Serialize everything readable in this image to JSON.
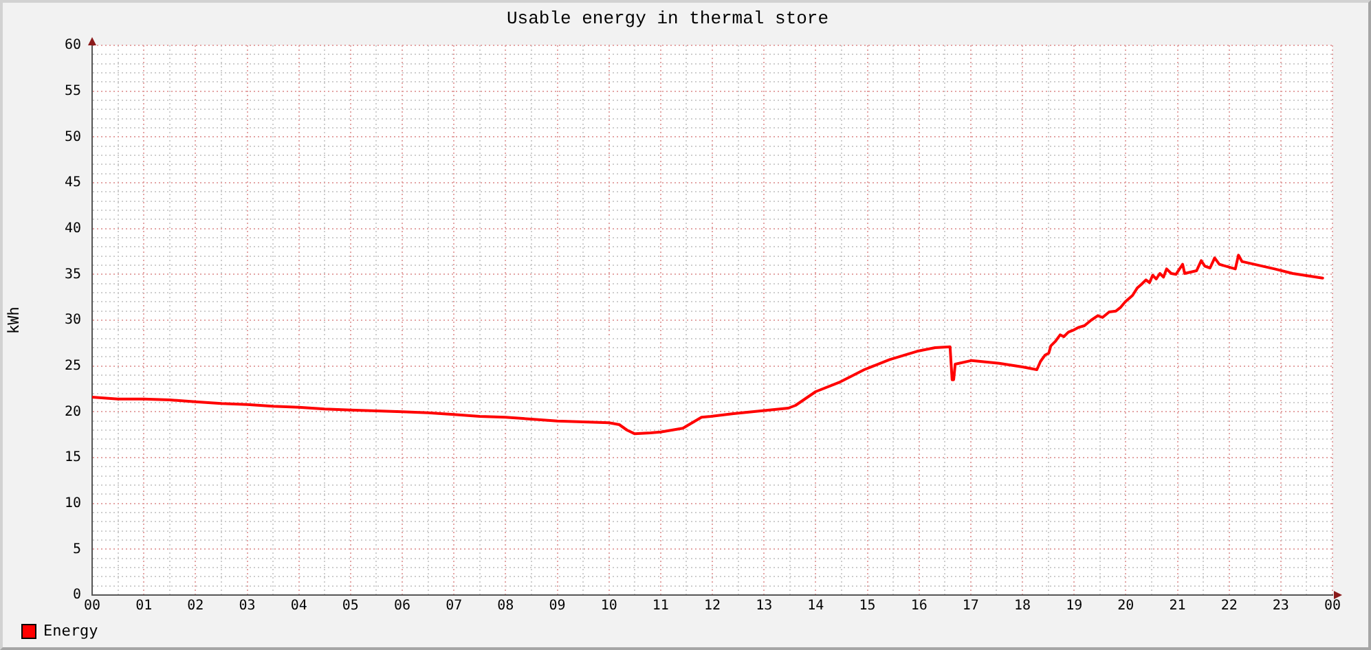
{
  "chart_data": {
    "type": "line",
    "title": "Usable energy in thermal store",
    "ylabel": "kWh",
    "x": [
      0,
      0.5,
      1,
      1.5,
      2,
      2.5,
      3,
      3.5,
      4,
      4.5,
      5,
      5.5,
      6,
      6.5,
      7,
      7.5,
      8,
      8.5,
      9,
      9.5,
      10,
      10.2,
      10.35,
      10.5,
      10.8,
      11,
      11.43,
      11.79,
      11.97,
      12.41,
      12.94,
      13.47,
      13.61,
      14,
      14.45,
      14.94,
      15.43,
      15.96,
      16.31,
      16.6,
      16.64,
      16.67,
      16.7,
      17.02,
      17.55,
      18,
      18.28,
      18.35,
      18.44,
      18.51,
      18.55,
      18.64,
      18.73,
      18.8,
      18.89,
      18.98,
      19.08,
      19.2,
      19.33,
      19.46,
      19.55,
      19.68,
      19.81,
      19.9,
      19.99,
      20.13,
      20.22,
      20.3,
      20.39,
      20.46,
      20.52,
      20.59,
      20.66,
      20.73,
      20.79,
      20.88,
      20.97,
      21.1,
      21.14,
      21.37,
      21.46,
      21.53,
      21.63,
      21.72,
      21.81,
      22.12,
      22.18,
      22.25,
      22.88,
      23.23,
      23.81
    ],
    "series": [
      {
        "name": "Energy",
        "color": "#ff0000",
        "values": [
          21.6,
          21.4,
          21.4,
          21.3,
          21.1,
          20.9,
          20.8,
          20.6,
          20.5,
          20.3,
          20.2,
          20.1,
          20.0,
          19.9,
          19.7,
          19.5,
          19.4,
          19.2,
          19.0,
          18.9,
          18.8,
          18.6,
          18.0,
          17.6,
          17.7,
          17.8,
          18.2,
          19.4,
          19.5,
          19.8,
          20.1,
          20.4,
          20.7,
          22.2,
          23.2,
          24.6,
          25.7,
          26.6,
          27.0,
          27.1,
          23.5,
          23.5,
          25.2,
          25.6,
          25.3,
          24.9,
          24.6,
          25.5,
          26.2,
          26.4,
          27.2,
          27.7,
          28.4,
          28.2,
          28.7,
          28.9,
          29.2,
          29.4,
          30.0,
          30.5,
          30.3,
          30.9,
          31.0,
          31.4,
          32.0,
          32.7,
          33.5,
          33.9,
          34.4,
          34.1,
          34.9,
          34.5,
          35.1,
          34.7,
          35.6,
          35.1,
          35.0,
          36.1,
          35.1,
          35.4,
          36.5,
          35.9,
          35.7,
          36.8,
          36.1,
          35.6,
          37.1,
          36.4,
          35.6,
          35.1,
          34.6
        ]
      }
    ],
    "xlim": [
      0,
      24
    ],
    "xticks": [
      {
        "value": 0,
        "label": "00"
      },
      {
        "value": 0.5,
        "label": null
      },
      {
        "value": 1,
        "label": "01"
      },
      {
        "value": 1.5,
        "label": null
      },
      {
        "value": 2,
        "label": "02"
      },
      {
        "value": 2.5,
        "label": null
      },
      {
        "value": 3,
        "label": "03"
      },
      {
        "value": 3.5,
        "label": null
      },
      {
        "value": 4,
        "label": "04"
      },
      {
        "value": 4.5,
        "label": null
      },
      {
        "value": 5,
        "label": "05"
      },
      {
        "value": 5.5,
        "label": null
      },
      {
        "value": 6,
        "label": "06"
      },
      {
        "value": 6.5,
        "label": null
      },
      {
        "value": 7,
        "label": "07"
      },
      {
        "value": 7.5,
        "label": null
      },
      {
        "value": 8,
        "label": "08"
      },
      {
        "value": 8.5,
        "label": null
      },
      {
        "value": 9,
        "label": "09"
      },
      {
        "value": 9.5,
        "label": null
      },
      {
        "value": 10,
        "label": "10"
      },
      {
        "value": 10.5,
        "label": null
      },
      {
        "value": 11,
        "label": "11"
      },
      {
        "value": 11.5,
        "label": null
      },
      {
        "value": 12,
        "label": "12"
      },
      {
        "value": 12.5,
        "label": null
      },
      {
        "value": 13,
        "label": "13"
      },
      {
        "value": 13.5,
        "label": null
      },
      {
        "value": 14,
        "label": "14"
      },
      {
        "value": 14.5,
        "label": null
      },
      {
        "value": 15,
        "label": "15"
      },
      {
        "value": 15.5,
        "label": null
      },
      {
        "value": 16,
        "label": "16"
      },
      {
        "value": 16.5,
        "label": null
      },
      {
        "value": 17,
        "label": "17"
      },
      {
        "value": 17.5,
        "label": null
      },
      {
        "value": 18,
        "label": "18"
      },
      {
        "value": 18.5,
        "label": null
      },
      {
        "value": 19,
        "label": "19"
      },
      {
        "value": 19.5,
        "label": null
      },
      {
        "value": 20,
        "label": "20"
      },
      {
        "value": 20.5,
        "label": null
      },
      {
        "value": 21,
        "label": "21"
      },
      {
        "value": 21.5,
        "label": null
      },
      {
        "value": 22,
        "label": "22"
      },
      {
        "value": 22.5,
        "label": null
      },
      {
        "value": 23,
        "label": "23"
      },
      {
        "value": 23.5,
        "label": null
      },
      {
        "value": 24,
        "label": "00"
      }
    ],
    "ylim": [
      0,
      60
    ],
    "yticks": [
      0,
      {
        "value": 1,
        "label": null
      },
      {
        "value": 2,
        "label": null
      },
      {
        "value": 3,
        "label": null
      },
      {
        "value": 4,
        "label": null
      },
      5,
      {
        "value": 6,
        "label": null
      },
      {
        "value": 7,
        "label": null
      },
      {
        "value": 8,
        "label": null
      },
      {
        "value": 9,
        "label": null
      },
      10,
      {
        "value": 11,
        "label": null
      },
      {
        "value": 12,
        "label": null
      },
      {
        "value": 13,
        "label": null
      },
      {
        "value": 14,
        "label": null
      },
      15,
      {
        "value": 16,
        "label": null
      },
      {
        "value": 17,
        "label": null
      },
      {
        "value": 18,
        "label": null
      },
      {
        "value": 19,
        "label": null
      },
      20,
      {
        "value": 21,
        "label": null
      },
      {
        "value": 22,
        "label": null
      },
      {
        "value": 23,
        "label": null
      },
      {
        "value": 24,
        "label": null
      },
      25,
      {
        "value": 26,
        "label": null
      },
      {
        "value": 27,
        "label": null
      },
      {
        "value": 28,
        "label": null
      },
      {
        "value": 29,
        "label": null
      },
      30,
      {
        "value": 31,
        "label": null
      },
      {
        "value": 32,
        "label": null
      },
      {
        "value": 33,
        "label": null
      },
      {
        "value": 34,
        "label": null
      },
      35,
      {
        "value": 36,
        "label": null
      },
      {
        "value": 37,
        "label": null
      },
      {
        "value": 38,
        "label": null
      },
      {
        "value": 39,
        "label": null
      },
      40,
      {
        "value": 41,
        "label": null
      },
      {
        "value": 42,
        "label": null
      },
      {
        "value": 43,
        "label": null
      },
      {
        "value": 44,
        "label": null
      },
      45,
      {
        "value": 46,
        "label": null
      },
      {
        "value": 47,
        "label": null
      },
      {
        "value": 48,
        "label": null
      },
      {
        "value": 49,
        "label": null
      },
      50,
      {
        "value": 51,
        "label": null
      },
      {
        "value": 52,
        "label": null
      },
      {
        "value": 53,
        "label": null
      },
      {
        "value": 54,
        "label": null
      },
      55,
      {
        "value": 56,
        "label": null
      },
      {
        "value": 57,
        "label": null
      },
      {
        "value": 58,
        "label": null
      },
      {
        "value": 59,
        "label": null
      },
      60
    ],
    "grid": true,
    "legend": "bottom left"
  }
}
